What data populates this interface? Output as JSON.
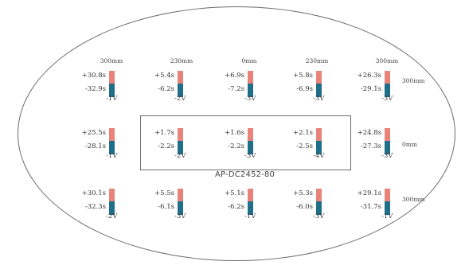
{
  "colors": {
    "positive_bar": "#e8837a",
    "negative_bar": "#1f6f8b",
    "outline": "#6b6b6b"
  },
  "model_label": "AP-DC2452-80",
  "column_labels": [
    "300mm",
    "230mm",
    "0mm",
    "230mm",
    "300mm"
  ],
  "row_labels": [
    "300mm",
    "0mm",
    "300mm"
  ],
  "rows": [
    [
      {
        "top": "+30.8s",
        "bottom": "-32.9s",
        "setting": "-1V"
      },
      {
        "top": "+5.4s",
        "bottom": "-6.2s",
        "setting": "-2V"
      },
      {
        "top": "+6.9s",
        "bottom": "-7.2s",
        "setting": "-3V"
      },
      {
        "top": "+5.8s",
        "bottom": "-6.9s",
        "setting": "-3V"
      },
      {
        "top": "+26.3s",
        "bottom": "-29.1s",
        "setting": "-3V"
      }
    ],
    [
      {
        "top": "+25.5s",
        "bottom": "-28.1s",
        "setting": "-1V"
      },
      {
        "top": "+1.7s",
        "bottom": "-2.2s",
        "setting": "-2V"
      },
      {
        "top": "+1.6s",
        "bottom": "-2.2s",
        "setting": "-3V"
      },
      {
        "top": "+2.1s",
        "bottom": "-2.5s",
        "setting": "-4V"
      },
      {
        "top": "+24.8s",
        "bottom": "-27.3s",
        "setting": "-3V"
      }
    ],
    [
      {
        "top": "+30.1s",
        "bottom": "-32.3s",
        "setting": "-2V"
      },
      {
        "top": "+5.5s",
        "bottom": "-6.1s",
        "setting": "-3V"
      },
      {
        "top": "+5.1s",
        "bottom": "-6.2s",
        "setting": "-1V"
      },
      {
        "top": "+5.3s",
        "bottom": "-6.0s",
        "setting": "-3V"
      },
      {
        "top": "+29.1s",
        "bottom": "-31.7s",
        "setting": "-1V"
      }
    ]
  ]
}
